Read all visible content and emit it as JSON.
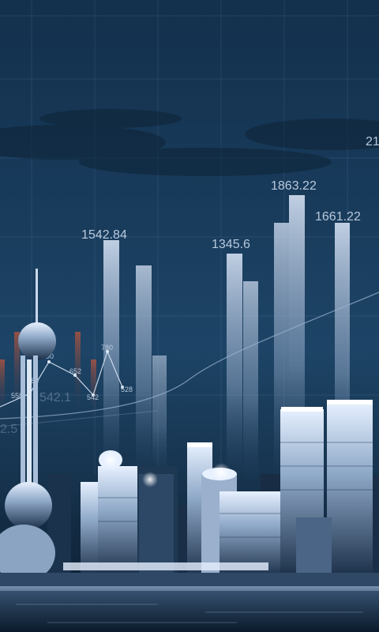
{
  "labels": {
    "bars": [
      "1542.84",
      "1345.6",
      "1863.22",
      "1661.22",
      "21"
    ],
    "line": [
      "558",
      "588",
      "690",
      "652",
      "542",
      "780",
      "528"
    ],
    "faded": [
      "542.1",
      "2.5"
    ]
  },
  "colors": {
    "sky_top": "#13304c",
    "sky_mid": "#1d4466",
    "bar_light": "#c8d6ea",
    "city_glow": "#e6f0ff",
    "water": "#0a1a2b"
  }
}
